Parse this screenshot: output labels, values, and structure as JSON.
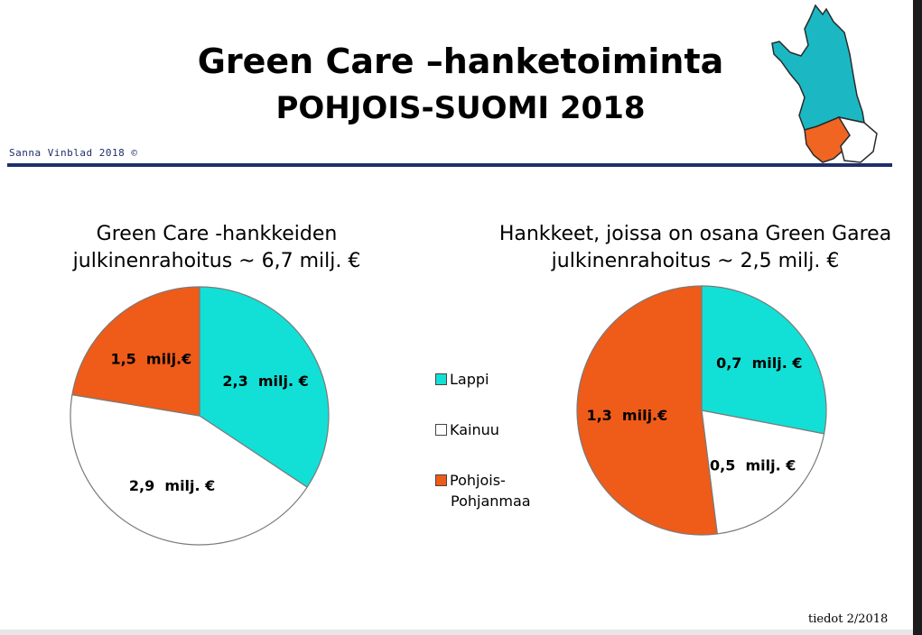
{
  "header": {
    "title_line1": "Green Care –hanketoiminta",
    "title_line2": "POHJOIS-SUOMI 2018",
    "author": "Sanna Vinblad 2018 ©",
    "rule_color": "#1f2f6b"
  },
  "map_icon": {
    "name": "finland-region-map-icon",
    "colors": {
      "north": "#1bb8c4",
      "south": "#f06522",
      "east": "#ffffff"
    }
  },
  "colors": {
    "Lappi": "#12e0d6",
    "Kainuu": "#ffffff",
    "Pohjois-Pohjanmaa": "#ef5b19"
  },
  "legend": {
    "items": [
      {
        "label": "Lappi",
        "color": "#12e0d6"
      },
      {
        "label": "Kainuu",
        "color": "#ffffff"
      },
      {
        "label": "Pohjois-",
        "label_line2": "Pohjanmaa",
        "color": "#ef5b19"
      }
    ]
  },
  "chart_data": [
    {
      "type": "pie",
      "title_line1": "Green Care -hankkeiden",
      "title_line2": "julkinenrahoitus ~ 6,7 milj. €",
      "categories": [
        "Lappi",
        "Kainuu",
        "Pohjois-Pohjanmaa"
      ],
      "values": [
        2.3,
        2.9,
        1.5
      ],
      "data_labels": [
        "2,3  milj. €",
        "2,9  milj. €",
        "1,5  milj.€"
      ],
      "start": "12 o'clock",
      "direction": "clockwise"
    },
    {
      "type": "pie",
      "title_line1": "Hankkeet, joissa on osana Green Garea",
      "title_line2": "julkinenrahoitus ~ 2,5 milj. €",
      "categories": [
        "Lappi",
        "Kainuu",
        "Pohjois-Pohjanmaa"
      ],
      "values": [
        0.7,
        0.5,
        1.3
      ],
      "data_labels": [
        "0,7  milj. €",
        "0,5  milj. €",
        "1,3  milj.€"
      ],
      "start": "12 o'clock",
      "direction": "clockwise"
    }
  ],
  "footer": {
    "source": "tiedot 2/2018"
  }
}
